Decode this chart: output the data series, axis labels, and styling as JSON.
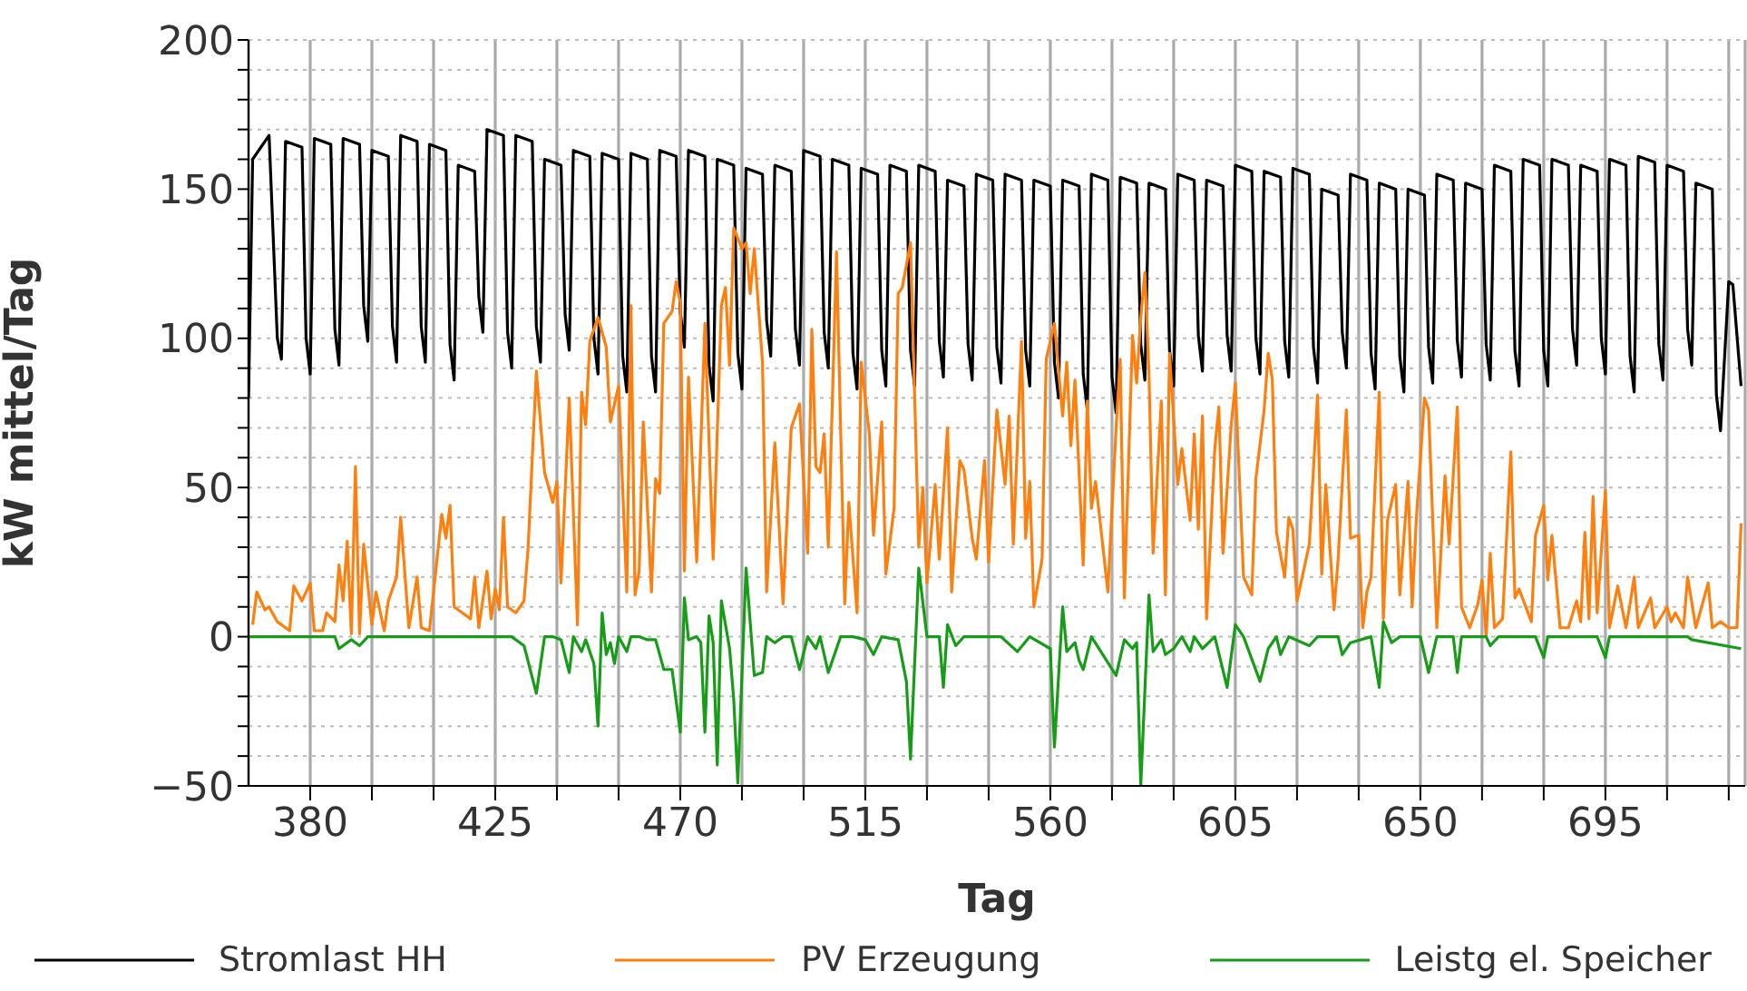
{
  "chart_data": {
    "type": "line",
    "xlabel": "Tag",
    "ylabel": "kW mittel/Tag",
    "xlim": [
      365,
      729
    ],
    "ylim": [
      -50,
      200
    ],
    "xticks": [
      {
        "value": 380,
        "label": "380"
      },
      {
        "value": 395,
        "label": null
      },
      {
        "value": 410,
        "label": null
      },
      {
        "value": 425,
        "label": "425"
      },
      {
        "value": 440,
        "label": null
      },
      {
        "value": 455,
        "label": null
      },
      {
        "value": 470,
        "label": "470"
      },
      {
        "value": 485,
        "label": null
      },
      {
        "value": 500,
        "label": null
      },
      {
        "value": 515,
        "label": "515"
      },
      {
        "value": 530,
        "label": null
      },
      {
        "value": 545,
        "label": null
      },
      {
        "value": 560,
        "label": "560"
      },
      {
        "value": 575,
        "label": null
      },
      {
        "value": 590,
        "label": null
      },
      {
        "value": 605,
        "label": "605"
      },
      {
        "value": 620,
        "label": null
      },
      {
        "value": 635,
        "label": null
      },
      {
        "value": 650,
        "label": "650"
      },
      {
        "value": 665,
        "label": null
      },
      {
        "value": 680,
        "label": null
      },
      {
        "value": 695,
        "label": "695"
      },
      {
        "value": 710,
        "label": null
      },
      {
        "value": 725,
        "label": null
      }
    ],
    "yticks": [
      {
        "value": -50,
        "label": "−50"
      },
      {
        "value": -40,
        "label": null
      },
      {
        "value": -30,
        "label": null
      },
      {
        "value": -20,
        "label": null
      },
      {
        "value": -10,
        "label": null
      },
      0,
      {
        "value": 10,
        "label": null
      },
      {
        "value": 20,
        "label": null
      },
      {
        "value": 30,
        "label": null
      },
      {
        "value": 40,
        "label": null
      },
      50,
      {
        "value": 60,
        "label": null
      },
      {
        "value": 70,
        "label": null
      },
      {
        "value": 80,
        "label": null
      },
      {
        "value": 90,
        "label": null
      },
      100,
      {
        "value": 110,
        "label": null
      },
      {
        "value": 120,
        "label": null
      },
      {
        "value": 130,
        "label": null
      },
      {
        "value": 140,
        "label": null
      },
      150,
      {
        "value": 160,
        "label": null
      },
      {
        "value": 170,
        "label": null
      },
      {
        "value": 180,
        "label": null
      },
      {
        "value": 190,
        "label": null
      },
      200
    ],
    "grid": true,
    "legend": "bottom",
    "series": [
      {
        "name": "Stromlast HH",
        "color": "#000000",
        "x": [
          365,
          366,
          370,
          372,
          373,
          374,
          378,
          379,
          380,
          381,
          385,
          386,
          387,
          388,
          392,
          393,
          394,
          395,
          399,
          400,
          401,
          402,
          406,
          407,
          408,
          409,
          413,
          414,
          415,
          416,
          420,
          421,
          422,
          423,
          427,
          428,
          429,
          430,
          434,
          435,
          436,
          437,
          441,
          442,
          443,
          444,
          448,
          449,
          450,
          451,
          455,
          456,
          457,
          458,
          462,
          463,
          464,
          465,
          469,
          470,
          471,
          472,
          476,
          477,
          478,
          479,
          483,
          484,
          485,
          486,
          490,
          491,
          492,
          493,
          497,
          498,
          499,
          500,
          504,
          505,
          506,
          507,
          511,
          512,
          513,
          514,
          518,
          519,
          520,
          521,
          525,
          526,
          527,
          528,
          532,
          533,
          534,
          535,
          539,
          540,
          541,
          542,
          546,
          547,
          548,
          549,
          553,
          554,
          555,
          556,
          560,
          561,
          562,
          563,
          567,
          568,
          569,
          570,
          574,
          575,
          576,
          577,
          581,
          582,
          583,
          584,
          588,
          589,
          590,
          591,
          595,
          596,
          597,
          598,
          602,
          603,
          604,
          605,
          609,
          610,
          611,
          612,
          616,
          617,
          618,
          619,
          623,
          624,
          625,
          626,
          630,
          631,
          632,
          633,
          637,
          638,
          639,
          640,
          644,
          645,
          646,
          647,
          651,
          652,
          653,
          654,
          658,
          659,
          660,
          661,
          665,
          666,
          667,
          668,
          672,
          673,
          674,
          675,
          679,
          680,
          681,
          682,
          686,
          687,
          688,
          689,
          693,
          694,
          695,
          696,
          700,
          701,
          702,
          703,
          707,
          708,
          709,
          710,
          714,
          715,
          716,
          717,
          721,
          722,
          723,
          725,
          726,
          728
        ],
        "values": [
          80,
          160,
          168,
          100,
          93,
          166,
          164,
          100,
          88,
          167,
          165,
          103,
          91,
          167,
          165,
          111,
          99,
          163,
          161,
          104,
          92,
          168,
          166,
          104,
          92,
          165,
          163,
          98,
          86,
          158,
          156,
          114,
          102,
          170,
          168,
          102,
          90,
          168,
          166,
          104,
          92,
          160,
          158,
          108,
          96,
          163,
          161,
          100,
          88,
          162,
          160,
          94,
          82,
          162,
          160,
          94,
          82,
          163,
          161,
          109,
          97,
          163,
          161,
          91,
          79,
          160,
          158,
          95,
          83,
          157,
          155,
          106,
          94,
          158,
          156,
          103,
          91,
          163,
          161,
          102,
          90,
          160,
          158,
          95,
          83,
          157,
          155,
          96,
          84,
          158,
          156,
          96,
          84,
          158,
          156,
          99,
          87,
          153,
          151,
          98,
          86,
          155,
          153,
          97,
          85,
          155,
          153,
          96,
          84,
          153,
          151,
          92,
          80,
          153,
          151,
          88,
          76,
          155,
          153,
          87,
          75,
          154,
          152,
          98,
          86,
          152,
          150,
          96,
          84,
          155,
          153,
          101,
          89,
          153,
          151,
          101,
          89,
          158,
          156,
          100,
          88,
          156,
          154,
          99,
          87,
          157,
          155,
          97,
          85,
          150,
          148,
          102,
          90,
          155,
          153,
          95,
          83,
          152,
          150,
          94,
          82,
          150,
          148,
          97,
          85,
          155,
          153,
          99,
          87,
          152,
          150,
          98,
          86,
          158,
          156,
          96,
          84,
          160,
          158,
          96,
          84,
          160,
          158,
          103,
          91,
          158,
          156,
          100,
          88,
          160,
          158,
          94,
          82,
          161,
          159,
          98,
          86,
          158,
          156,
          103,
          91,
          152,
          150,
          81,
          69,
          119,
          118,
          84
        ]
      },
      {
        "name": "PV Erzeugung",
        "color": "#ff7f0e",
        "x": [
          366,
          367,
          369,
          370,
          372,
          375,
          376,
          378,
          380,
          381,
          383,
          384,
          386,
          387,
          388,
          389,
          390,
          391,
          392,
          393,
          395,
          396,
          398,
          399,
          401,
          402,
          404,
          406,
          407,
          409,
          410,
          412,
          413,
          414,
          415,
          417,
          419,
          420,
          421,
          423,
          424,
          425,
          426,
          427,
          428,
          430,
          432,
          433,
          435,
          437,
          439,
          440,
          441,
          443,
          445,
          446,
          447,
          448,
          450,
          452,
          453,
          455,
          457,
          458,
          459,
          460,
          461,
          463,
          464,
          465,
          466,
          468,
          469,
          470,
          471,
          472,
          474,
          476,
          478,
          480,
          481,
          482,
          483,
          485,
          486,
          487,
          488,
          490,
          491,
          493,
          495,
          497,
          499,
          501,
          502,
          503,
          504,
          505,
          506,
          508,
          510,
          511,
          513,
          514,
          516,
          517,
          519,
          520,
          522,
          523,
          524,
          526,
          528,
          529,
          530,
          532,
          533,
          535,
          536,
          538,
          539,
          541,
          542,
          544,
          545,
          547,
          549,
          550,
          551,
          553,
          554,
          555,
          556,
          558,
          559,
          561,
          563,
          564,
          565,
          566,
          568,
          569,
          570,
          571,
          572,
          574,
          576,
          577,
          578,
          580,
          581,
          582,
          583,
          584,
          585,
          587,
          588,
          589,
          591,
          592,
          594,
          595,
          596,
          597,
          598,
          600,
          601,
          602,
          604,
          605,
          607,
          609,
          610,
          612,
          613,
          614,
          615,
          617,
          618,
          619,
          620,
          623,
          625,
          626,
          627,
          629,
          630,
          632,
          633,
          635,
          636,
          637,
          638,
          640,
          641,
          642,
          644,
          645,
          647,
          648,
          649,
          651,
          652,
          654,
          656,
          657,
          659,
          660,
          662,
          664,
          665,
          666,
          667,
          668,
          670,
          672,
          673,
          674,
          677,
          678,
          680,
          681,
          682,
          684,
          686,
          688,
          689,
          690,
          691,
          692,
          693,
          695,
          696,
          698,
          700,
          701,
          702,
          703,
          706,
          707,
          710,
          711,
          712,
          714,
          715,
          717,
          720,
          721,
          723,
          725,
          727,
          728
        ],
        "values": [
          4,
          15,
          9,
          10,
          5,
          2,
          17,
          12,
          18,
          2,
          2,
          8,
          5,
          24,
          12,
          32,
          1,
          57,
          1,
          31,
          4,
          15,
          2,
          12,
          20,
          40,
          3,
          20,
          3,
          2,
          15,
          41,
          33,
          44,
          10,
          8,
          6,
          20,
          3,
          22,
          6,
          16,
          9,
          40,
          10,
          8,
          12,
          30,
          89,
          55,
          45,
          52,
          18,
          80,
          4,
          82,
          71,
          99,
          107,
          97,
          72,
          84,
          15,
          111,
          14,
          22,
          72,
          15,
          53,
          48,
          105,
          109,
          119,
          112,
          22,
          87,
          25,
          105,
          26,
          111,
          117,
          91,
          137,
          130,
          132,
          115,
          130,
          92,
          15,
          65,
          11,
          70,
          78,
          28,
          103,
          57,
          55,
          68,
          30,
          129,
          11,
          45,
          8,
          92,
          68,
          34,
          72,
          21,
          43,
          115,
          117,
          132,
          30,
          50,
          18,
          51,
          26,
          70,
          15,
          59,
          56,
          33,
          26,
          59,
          25,
          76,
          51,
          74,
          31,
          99,
          33,
          52,
          10,
          26,
          93,
          105,
          74,
          92,
          64,
          86,
          24,
          79,
          43,
          52,
          40,
          15,
          70,
          93,
          13,
          101,
          85,
          107,
          122,
          88,
          28,
          79,
          14,
          95,
          51,
          63,
          39,
          68,
          36,
          74,
          6,
          63,
          77,
          28,
          71,
          85,
          20,
          14,
          53,
          76,
          95,
          86,
          35,
          20,
          40,
          36,
          12,
          31,
          81,
          21,
          51,
          9,
          26,
          76,
          33,
          34,
          3,
          15,
          20,
          82,
          6,
          39,
          51,
          14,
          52,
          10,
          39,
          80,
          76,
          3,
          54,
          31,
          77,
          10,
          3,
          11,
          19,
          0,
          28,
          3,
          6,
          62,
          13,
          16,
          5,
          34,
          44,
          19,
          34,
          3,
          3,
          12,
          5,
          35,
          6,
          47,
          8,
          49,
          3,
          17,
          3,
          11,
          20,
          3,
          13,
          3,
          10,
          5,
          8,
          3,
          20,
          3,
          18,
          3,
          5,
          3,
          3,
          38
        ]
      },
      {
        "name": "Leistg el. Speicher",
        "color": "#179c17",
        "x": [
          365,
          386,
          387,
          390,
          392,
          394,
          429,
          432,
          435,
          437,
          439,
          441,
          443,
          444,
          446,
          447,
          449,
          450,
          451,
          452,
          453,
          454,
          455,
          457,
          458,
          460,
          462,
          464,
          466,
          468,
          470,
          471,
          472,
          474,
          475,
          476,
          477,
          478,
          479,
          480,
          482,
          483,
          484,
          486,
          488,
          490,
          491,
          493,
          495,
          497,
          499,
          501,
          503,
          504,
          506,
          509,
          512,
          515,
          517,
          519,
          523,
          525,
          526,
          528,
          530,
          533,
          534,
          535,
          537,
          539,
          543,
          548,
          552,
          555,
          560,
          561,
          563,
          564,
          566,
          567,
          568,
          570,
          576,
          578,
          580,
          581,
          582,
          584,
          585,
          587,
          588,
          590,
          592,
          594,
          595,
          597,
          600,
          603,
          605,
          607,
          611,
          613,
          615,
          616,
          618,
          623,
          625,
          630,
          631,
          633,
          638,
          640,
          641,
          643,
          645,
          650,
          652,
          654,
          658,
          659,
          660,
          666,
          667,
          669,
          678,
          680,
          681,
          693,
          695,
          696,
          715,
          716,
          728
        ],
        "values": [
          0,
          0,
          -4,
          -1,
          -3,
          0,
          0,
          -3,
          -19,
          0,
          0,
          -1,
          -12,
          0,
          -5,
          -1,
          -9,
          -30,
          8,
          -6,
          -2,
          -9,
          0,
          -5,
          0,
          0,
          -1,
          -1,
          -11,
          -11,
          -32,
          13,
          -1,
          0,
          -2,
          -32,
          7,
          -2,
          -43,
          12,
          -4,
          -21,
          -49,
          23,
          -13,
          -12,
          0,
          -2,
          0,
          0,
          -11,
          0,
          -4,
          0,
          -12,
          0,
          0,
          -1,
          -6,
          0,
          -1,
          -15,
          -41,
          23,
          0,
          0,
          -17,
          4,
          -3,
          0,
          0,
          0,
          -5,
          0,
          -4,
          -37,
          10,
          -5,
          -2,
          -8,
          -11,
          0,
          -13,
          -1,
          -4,
          -2,
          -50,
          14,
          -5,
          -1,
          -6,
          -4,
          0,
          -5,
          0,
          -4,
          0,
          -17,
          4,
          0,
          -15,
          -4,
          0,
          -6,
          0,
          -3,
          0,
          0,
          -6,
          -2,
          0,
          -17,
          5,
          -2,
          0,
          0,
          -12,
          0,
          0,
          -12,
          0,
          0,
          -3,
          0,
          0,
          -7,
          0,
          0,
          -7,
          0,
          0,
          -1,
          -4
        ]
      }
    ]
  }
}
